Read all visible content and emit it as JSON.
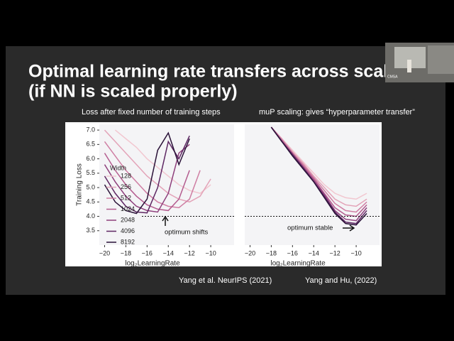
{
  "slide": {
    "title": [
      "Optimal learning rate transfers across scale",
      "(if NN is scaled properly)"
    ],
    "captions": [
      "Loss after fixed number of training steps",
      "muP scaling: gives “hyperparameter transfer”"
    ],
    "citations": [
      "Yang et al. NeurIPS (2021)",
      "Yang and Hu, (2022)"
    ],
    "webcam_label": "CMSA"
  },
  "chart_data": [
    {
      "type": "line",
      "xlabel": "log₂LearningRate",
      "ylabel": "Training Loss",
      "legend": true,
      "legend_title": "Width",
      "x": [
        -20,
        -19,
        -18,
        -17,
        -16,
        -15,
        -14,
        -13,
        -12,
        -11,
        -10
      ],
      "series": [
        {
          "name": "128",
          "color": "#f2c7d0",
          "values": [
            null,
            7.0,
            6.7,
            6.4,
            6.0,
            5.7,
            5.4,
            5.1,
            4.9,
            4.8,
            5.1
          ]
        },
        {
          "name": "256",
          "color": "#e3a3b8",
          "values": [
            7.0,
            6.6,
            6.2,
            5.8,
            5.4,
            5.1,
            4.8,
            4.6,
            4.5,
            4.7,
            5.3
          ]
        },
        {
          "name": "512",
          "color": "#cf7ea3",
          "values": [
            6.6,
            6.1,
            5.6,
            5.2,
            4.8,
            4.5,
            4.35,
            4.3,
            4.6,
            5.6,
            null
          ]
        },
        {
          "name": "1024",
          "color": "#b45c8f",
          "values": [
            6.2,
            5.6,
            5.1,
            4.7,
            4.4,
            4.25,
            4.2,
            4.6,
            5.6,
            null,
            null
          ]
        },
        {
          "name": "2048",
          "color": "#8e3f7c",
          "values": [
            5.8,
            5.2,
            4.7,
            4.35,
            4.2,
            4.15,
            4.8,
            6.2,
            6.5,
            null,
            null
          ]
        },
        {
          "name": "4096",
          "color": "#5e2763",
          "values": [
            5.4,
            4.8,
            4.35,
            4.15,
            4.12,
            5.0,
            6.6,
            6.0,
            6.8,
            null,
            null
          ]
        },
        {
          "name": "8192",
          "color": "#2a1238",
          "values": [
            5.1,
            4.5,
            4.2,
            4.1,
            4.6,
            6.3,
            6.9,
            5.8,
            6.7,
            null,
            null
          ]
        }
      ],
      "xlim": [
        -20.5,
        -7.8
      ],
      "ylim": [
        3.0,
        7.2
      ],
      "xticks": [
        {
          "value": -20,
          "label": "−20"
        },
        {
          "value": -18,
          "label": "−18"
        },
        {
          "value": -16,
          "label": "−16"
        },
        {
          "value": -14,
          "label": "−14"
        },
        {
          "value": -12,
          "label": "−12"
        },
        {
          "value": -10,
          "label": "−10"
        }
      ],
      "yticks": [
        3.5,
        {
          "value": 4,
          "label": "4.0"
        },
        4.5,
        {
          "value": 5,
          "label": "5.0"
        },
        5.5,
        {
          "value": 6,
          "label": "6.0"
        },
        6.5,
        {
          "value": 7,
          "label": "7.0"
        }
      ],
      "hline": 4.0,
      "annotation": "optimum shifts"
    },
    {
      "type": "line",
      "xlabel": "log₂LearningRate",
      "legend": false,
      "x": [
        -18,
        -17,
        -16,
        -15,
        -14,
        -13,
        -12,
        -11,
        -10,
        -9
      ],
      "series": [
        {
          "name": "128",
          "color": "#f2c7d0",
          "values": [
            7.1,
            6.7,
            6.3,
            5.9,
            5.5,
            5.1,
            4.8,
            4.65,
            4.6,
            4.8
          ]
        },
        {
          "name": "256",
          "color": "#e3a3b8",
          "values": [
            7.1,
            6.7,
            6.25,
            5.85,
            5.4,
            5.0,
            4.6,
            4.4,
            4.35,
            4.6
          ]
        },
        {
          "name": "512",
          "color": "#cf7ea3",
          "values": [
            7.1,
            6.65,
            6.2,
            5.8,
            5.35,
            4.9,
            4.45,
            4.2,
            4.15,
            4.5
          ]
        },
        {
          "name": "1024",
          "color": "#b45c8f",
          "values": [
            7.1,
            6.65,
            6.2,
            5.75,
            5.3,
            4.8,
            4.3,
            4.05,
            4.0,
            4.4
          ]
        },
        {
          "name": "2048",
          "color": "#8e3f7c",
          "values": [
            7.1,
            6.6,
            6.15,
            5.7,
            5.25,
            4.75,
            4.2,
            3.9,
            3.85,
            4.3
          ]
        },
        {
          "name": "4096",
          "color": "#5e2763",
          "values": [
            7.1,
            6.6,
            6.15,
            5.7,
            5.2,
            4.7,
            4.15,
            3.8,
            3.75,
            4.2
          ]
        },
        {
          "name": "8192",
          "color": "#2a1238",
          "values": [
            7.1,
            6.6,
            6.1,
            5.65,
            5.2,
            4.65,
            4.1,
            3.75,
            3.7,
            4.1
          ]
        }
      ],
      "xlim": [
        -20.5,
        -7.8
      ],
      "ylim": [
        3.0,
        7.2
      ],
      "xticks": [
        {
          "value": -20,
          "label": "−20"
        },
        {
          "value": -18,
          "label": "−18"
        },
        {
          "value": -16,
          "label": "−16"
        },
        {
          "value": -14,
          "label": "−14"
        },
        {
          "value": -12,
          "label": "−12"
        },
        {
          "value": -10,
          "label": "−10"
        }
      ],
      "hline": 4.0,
      "annotation": "optimum stable"
    }
  ]
}
